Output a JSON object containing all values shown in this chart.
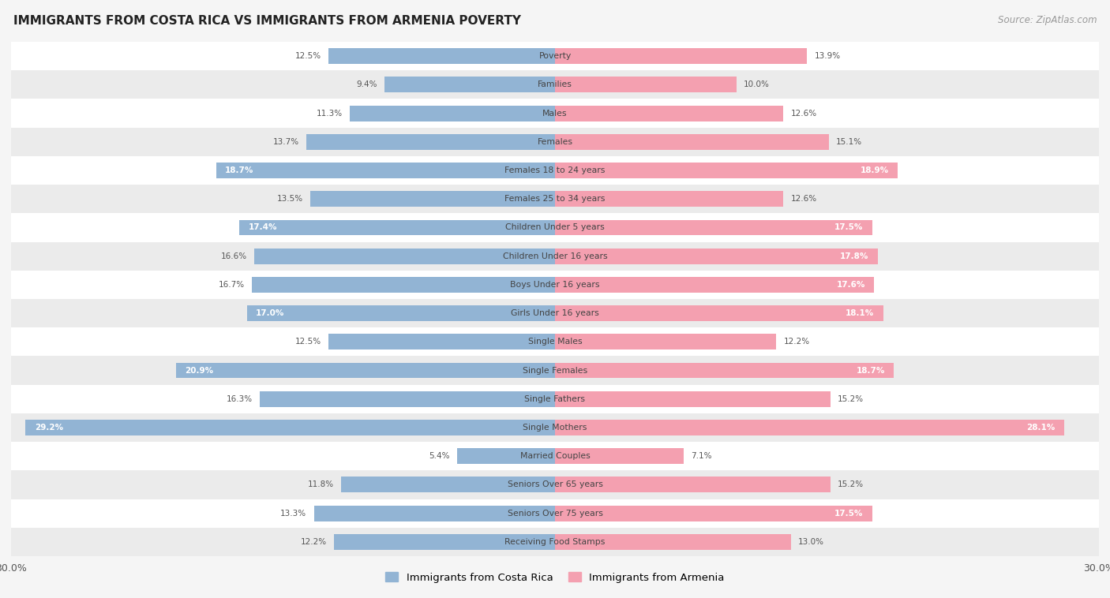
{
  "title": "IMMIGRANTS FROM COSTA RICA VS IMMIGRANTS FROM ARMENIA POVERTY",
  "source": "Source: ZipAtlas.com",
  "categories": [
    "Poverty",
    "Families",
    "Males",
    "Females",
    "Females 18 to 24 years",
    "Females 25 to 34 years",
    "Children Under 5 years",
    "Children Under 16 years",
    "Boys Under 16 years",
    "Girls Under 16 years",
    "Single Males",
    "Single Females",
    "Single Fathers",
    "Single Mothers",
    "Married Couples",
    "Seniors Over 65 years",
    "Seniors Over 75 years",
    "Receiving Food Stamps"
  ],
  "costa_rica": [
    12.5,
    9.4,
    11.3,
    13.7,
    18.7,
    13.5,
    17.4,
    16.6,
    16.7,
    17.0,
    12.5,
    20.9,
    16.3,
    29.2,
    5.4,
    11.8,
    13.3,
    12.2
  ],
  "armenia": [
    13.9,
    10.0,
    12.6,
    15.1,
    18.9,
    12.6,
    17.5,
    17.8,
    17.6,
    18.1,
    12.2,
    18.7,
    15.2,
    28.1,
    7.1,
    15.2,
    17.5,
    13.0
  ],
  "costa_rica_color": "#92b4d4",
  "armenia_color": "#f4a0b0",
  "background_color": "#f5f5f5",
  "row_white": "#ffffff",
  "row_gray": "#ebebeb",
  "xlim": 30.0,
  "bar_height": 0.55,
  "legend_label_cr": "Immigrants from Costa Rica",
  "legend_label_arm": "Immigrants from Armenia",
  "cr_inside_threshold": 17.0,
  "arm_inside_threshold": 17.5
}
